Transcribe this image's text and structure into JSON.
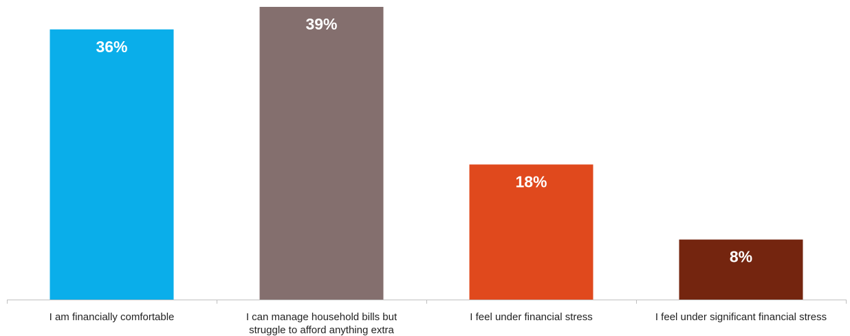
{
  "chart_data": {
    "type": "bar",
    "categories": [
      [
        "I am financially comfortable"
      ],
      [
        "I can manage household bills but",
        "struggle to afford anything extra"
      ],
      [
        "I feel under financial stress"
      ],
      [
        "I feel under significant financial stress"
      ]
    ],
    "values": [
      36,
      39,
      18,
      8
    ],
    "value_labels": [
      "36%",
      "39%",
      "18%",
      "8%"
    ],
    "colors": [
      "#0aaeea",
      "#846f6e",
      "#e0491d",
      "#74250f"
    ],
    "ylim": [
      0,
      40
    ],
    "grid": false,
    "legend": "none",
    "title": "",
    "xlabel": "",
    "ylabel": ""
  }
}
